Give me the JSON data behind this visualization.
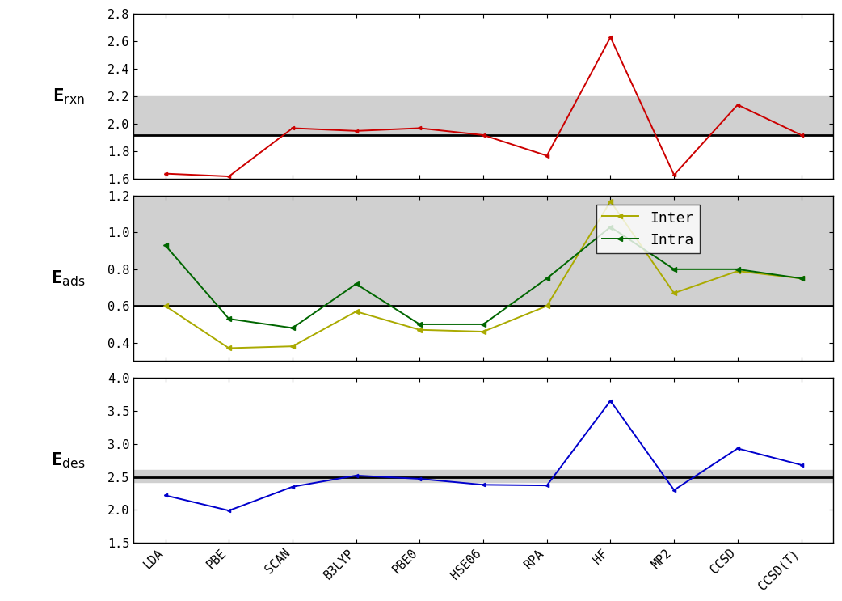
{
  "categories": [
    "LDA",
    "PBE",
    "SCAN",
    "B3LYP",
    "PBE0",
    "HSE06",
    "RPA",
    "HF",
    "MP2",
    "CCSD",
    "CCSD(T)"
  ],
  "rxn": [
    1.64,
    1.62,
    1.97,
    1.95,
    1.97,
    1.92,
    1.77,
    2.63,
    1.63,
    2.14,
    1.92
  ],
  "rxn_ref": 1.92,
  "rxn_band": [
    1.92,
    2.2
  ],
  "rxn_ylim": [
    1.6,
    2.8
  ],
  "rxn_yticks": [
    1.6,
    1.8,
    2.0,
    2.2,
    2.4,
    2.6,
    2.8
  ],
  "inter": [
    0.6,
    0.37,
    0.38,
    0.57,
    0.47,
    0.46,
    0.6,
    1.17,
    0.67,
    0.79,
    0.75
  ],
  "intra": [
    0.93,
    0.53,
    0.48,
    0.72,
    0.5,
    0.5,
    0.75,
    1.03,
    0.8,
    0.8,
    0.75
  ],
  "ads_ref": 0.6,
  "ads_band": [
    0.6,
    1.2
  ],
  "ads_ylim": [
    0.3,
    1.2
  ],
  "ads_yticks": [
    0.4,
    0.6,
    0.8,
    1.0,
    1.2
  ],
  "des": [
    2.22,
    1.99,
    2.35,
    2.52,
    2.47,
    2.38,
    2.37,
    3.65,
    2.3,
    2.93,
    2.68
  ],
  "des_ref": 2.5,
  "des_band": [
    2.42,
    2.6
  ],
  "des_ylim": [
    1.5,
    4.0
  ],
  "des_yticks": [
    1.5,
    2.0,
    2.5,
    3.0,
    3.5,
    4.0
  ],
  "rxn_color": "#cc0000",
  "inter_color": "#aaaa00",
  "intra_color": "#006600",
  "des_color": "#0000cc",
  "ref_color": "#000000",
  "band_color": "#d0d0d0",
  "ylabel_rxn": "E$_{\\mathrm{rxn}}$",
  "ylabel_ads": "E$_{\\mathrm{ads}}$",
  "ylabel_des": "E$_{\\mathrm{des}}$"
}
